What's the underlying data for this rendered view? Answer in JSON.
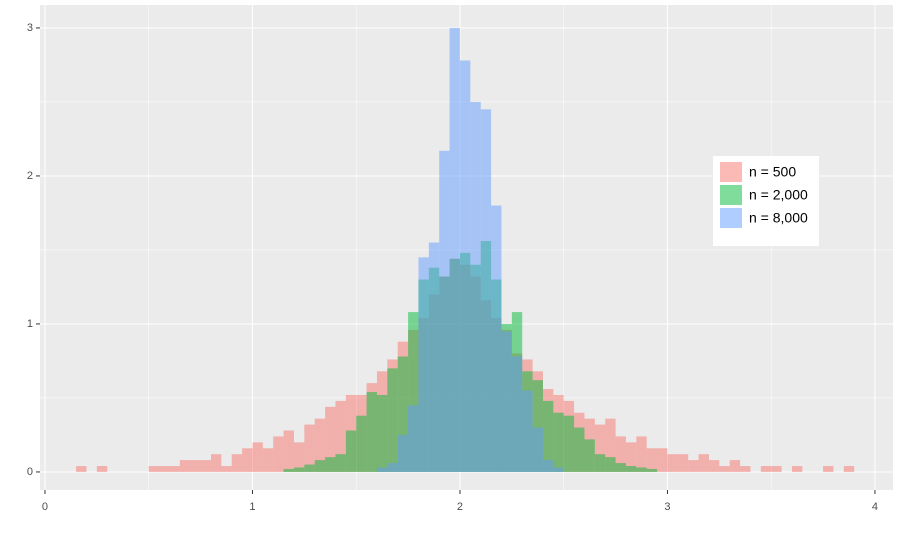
{
  "chart_data": {
    "type": "histogram",
    "xlim": [
      -0.024,
      4.087
    ],
    "ylim": [
      -0.122,
      3.155
    ],
    "xticks": [
      0,
      1,
      2,
      3,
      4
    ],
    "yticks": [
      0,
      1,
      2,
      3
    ],
    "grid": true,
    "legend": "inside",
    "series": [
      {
        "name": "n = 500",
        "color": "#F8766D",
        "bins": [
          0.15,
          0.2,
          0.25,
          0.3,
          0.35,
          0.4,
          0.45,
          0.5,
          0.55,
          0.6,
          0.65,
          0.7,
          0.75,
          0.8,
          0.85,
          0.9,
          0.95,
          1.0,
          1.05,
          1.1,
          1.15,
          1.2,
          1.25,
          1.3,
          1.35,
          1.4,
          1.45,
          1.5,
          1.55,
          1.6,
          1.65,
          1.7,
          1.75,
          1.8,
          1.85,
          1.9,
          1.95,
          2.0,
          2.05,
          2.1,
          2.15,
          2.2,
          2.25,
          2.3,
          2.35,
          2.4,
          2.45,
          2.5,
          2.55,
          2.6,
          2.65,
          2.7,
          2.75,
          2.8,
          2.85,
          2.9,
          2.95,
          3.0,
          3.05,
          3.1,
          3.15,
          3.2,
          3.25,
          3.3,
          3.35,
          3.4,
          3.45,
          3.5,
          3.55,
          3.6,
          3.65,
          3.7,
          3.75,
          3.8,
          3.85,
          3.9
        ],
        "values": [
          0.04,
          0,
          0.04,
          0,
          0,
          0,
          0,
          0.04,
          0.04,
          0.04,
          0.08,
          0.08,
          0.08,
          0.12,
          0.04,
          0.12,
          0.16,
          0.2,
          0.16,
          0.24,
          0.28,
          0.2,
          0.32,
          0.36,
          0.44,
          0.48,
          0.52,
          0.52,
          0.6,
          0.68,
          0.76,
          0.88,
          0.96,
          1.04,
          1.2,
          1.32,
          1.44,
          1.4,
          1.32,
          1.16,
          1.04,
          0.96,
          0.8,
          0.76,
          0.68,
          0.56,
          0.52,
          0.48,
          0.4,
          0.36,
          0.32,
          0.36,
          0.24,
          0.2,
          0.24,
          0.16,
          0.16,
          0.12,
          0.12,
          0.08,
          0.12,
          0.08,
          0.04,
          0.08,
          0.04,
          0,
          0.04,
          0.04,
          0,
          0.04,
          0,
          0,
          0.04,
          0,
          0.04
        ]
      },
      {
        "name": "n = 2,000",
        "color": "#00BA38",
        "bins": [
          1.15,
          1.2,
          1.25,
          1.3,
          1.35,
          1.4,
          1.45,
          1.5,
          1.55,
          1.6,
          1.65,
          1.7,
          1.75,
          1.8,
          1.85,
          1.9,
          1.95,
          2.0,
          2.05,
          2.1,
          2.15,
          2.2,
          2.25,
          2.3,
          2.35,
          2.4,
          2.45,
          2.5,
          2.55,
          2.6,
          2.65,
          2.7,
          2.75,
          2.8,
          2.85,
          2.9,
          2.95
        ],
        "values": [
          0.02,
          0.03,
          0.05,
          0.08,
          0.1,
          0.12,
          0.28,
          0.38,
          0.54,
          0.52,
          0.7,
          0.78,
          1.08,
          1.3,
          1.38,
          1.32,
          1.44,
          1.48,
          1.4,
          1.56,
          1.3,
          1.0,
          1.08,
          0.68,
          0.62,
          0.48,
          0.4,
          0.38,
          0.3,
          0.22,
          0.12,
          0.1,
          0.06,
          0.04,
          0.03,
          0.02
        ]
      },
      {
        "name": "n = 8,000",
        "color": "#619CFF",
        "bins": [
          1.6,
          1.65,
          1.7,
          1.75,
          1.8,
          1.85,
          1.9,
          1.95,
          2.0,
          2.05,
          2.1,
          2.15,
          2.2,
          2.25,
          2.3,
          2.35,
          2.4,
          2.45,
          2.5
        ],
        "values": [
          0.03,
          0.06,
          0.25,
          0.45,
          1.45,
          1.55,
          2.17,
          3.0,
          2.78,
          2.5,
          2.45,
          1.8,
          0.95,
          0.78,
          0.55,
          0.3,
          0.08,
          0.03
        ]
      }
    ]
  }
}
